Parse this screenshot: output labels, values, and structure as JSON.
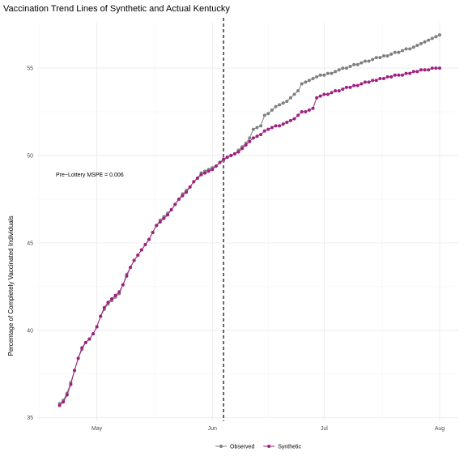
{
  "chart_data": {
    "type": "line",
    "title": "Vaccination Trend Lines of Synthetic and Actual Kentucky",
    "xlabel": "",
    "ylabel": "Percentage of Completely Vaccinated Individuals",
    "x_ticks": [
      {
        "label": "May",
        "date": "2021-05-01"
      },
      {
        "label": "Jun",
        "date": "2021-06-01"
      },
      {
        "label": "Jul",
        "date": "2021-07-01"
      },
      {
        "label": "Aug",
        "date": "2021-08-01"
      }
    ],
    "y_ticks": [
      35,
      40,
      45,
      50,
      55
    ],
    "xlim": [
      "2021-04-15",
      "2021-08-06"
    ],
    "ylim": [
      34.8,
      57.6
    ],
    "grid": true,
    "legend_position": "bottom",
    "vline": {
      "date": "2021-06-04",
      "style": "dashed"
    },
    "annotation": {
      "text": "Pre−Lottery MSPE = 0.006",
      "date": "2021-04-20",
      "y": 48.8
    },
    "colors": {
      "observed": "#808080",
      "synthetic": "#a0207e",
      "vline": "#000000"
    },
    "start_date": "2021-04-21",
    "series": [
      {
        "name": "Observed",
        "values": [
          35.8,
          36.0,
          36.4,
          37.0,
          37.7,
          38.4,
          38.9,
          39.3,
          39.5,
          39.8,
          40.2,
          40.8,
          41.2,
          41.5,
          41.7,
          41.9,
          42.1,
          42.6,
          43.2,
          43.6,
          44.0,
          44.3,
          44.6,
          44.9,
          45.2,
          45.6,
          46.0,
          46.3,
          46.5,
          46.7,
          46.9,
          47.2,
          47.5,
          47.8,
          48.0,
          48.2,
          48.5,
          48.7,
          49.0,
          49.1,
          49.2,
          49.3,
          49.4,
          49.6,
          49.7,
          49.9,
          50.0,
          50.1,
          50.3,
          50.5,
          50.7,
          51.0,
          51.5,
          51.6,
          51.7,
          52.3,
          52.4,
          52.6,
          52.8,
          52.9,
          53.0,
          53.1,
          53.3,
          53.5,
          53.7,
          54.1,
          54.2,
          54.3,
          54.4,
          54.5,
          54.6,
          54.6,
          54.7,
          54.7,
          54.8,
          54.9,
          55.0,
          55.0,
          55.1,
          55.2,
          55.2,
          55.3,
          55.4,
          55.4,
          55.5,
          55.6,
          55.6,
          55.7,
          55.7,
          55.8,
          55.9,
          55.9,
          56.0,
          56.1,
          56.1,
          56.2,
          56.3,
          56.4,
          56.5,
          56.6,
          56.7,
          56.8,
          56.9
        ]
      },
      {
        "name": "Synthetic",
        "values": [
          35.7,
          35.9,
          36.3,
          36.9,
          37.7,
          38.4,
          39.0,
          39.3,
          39.5,
          39.8,
          40.2,
          40.8,
          41.3,
          41.6,
          41.8,
          42.0,
          42.2,
          42.6,
          43.1,
          43.6,
          44.0,
          44.3,
          44.6,
          44.9,
          45.2,
          45.6,
          46.0,
          46.2,
          46.4,
          46.6,
          46.9,
          47.2,
          47.5,
          47.7,
          47.9,
          48.2,
          48.5,
          48.7,
          48.9,
          49.0,
          49.1,
          49.2,
          49.4,
          49.6,
          49.8,
          49.9,
          50.0,
          50.1,
          50.2,
          50.4,
          50.6,
          50.8,
          51.0,
          51.1,
          51.2,
          51.4,
          51.5,
          51.6,
          51.7,
          51.7,
          51.8,
          51.9,
          52.0,
          52.1,
          52.3,
          52.5,
          52.5,
          52.6,
          52.7,
          53.3,
          53.4,
          53.5,
          53.5,
          53.6,
          53.7,
          53.7,
          53.8,
          53.9,
          53.9,
          54.0,
          54.0,
          54.1,
          54.2,
          54.2,
          54.3,
          54.3,
          54.4,
          54.4,
          54.5,
          54.5,
          54.6,
          54.6,
          54.6,
          54.7,
          54.7,
          54.8,
          54.8,
          54.9,
          54.9,
          54.9,
          55.0,
          55.0,
          55.0
        ]
      }
    ]
  }
}
